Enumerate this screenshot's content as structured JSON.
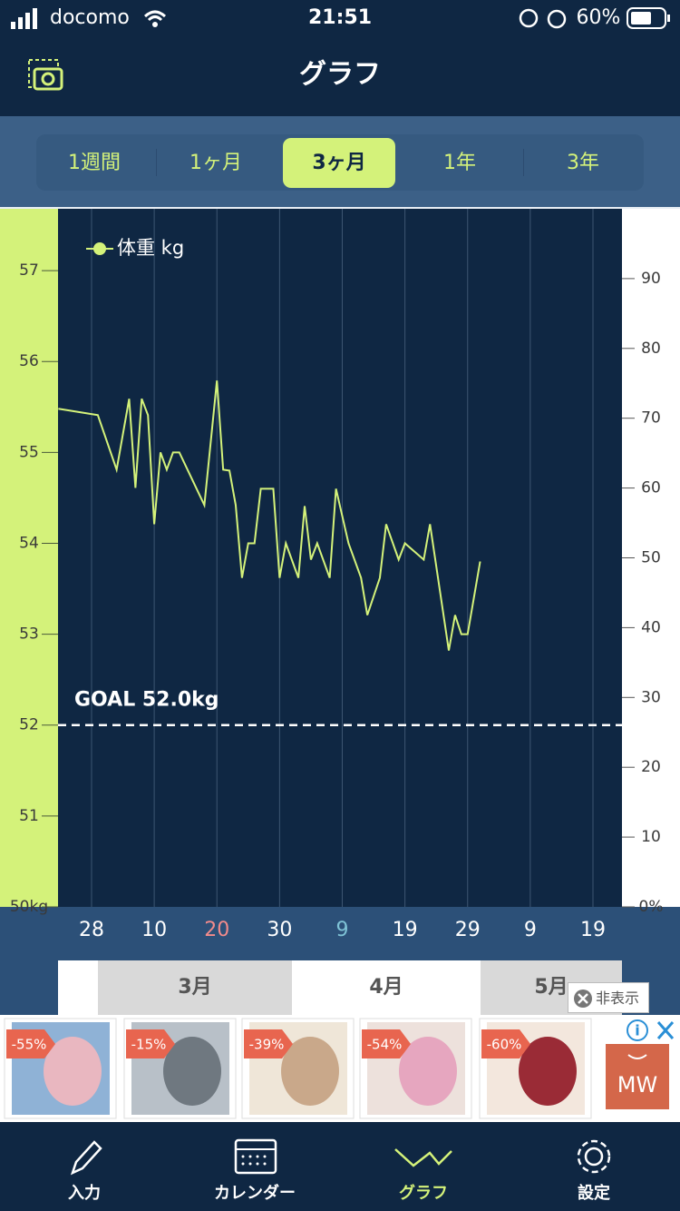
{
  "status_bar": {
    "carrier": "docomo",
    "time": "21:51",
    "battery": "60%"
  },
  "header": {
    "title": "グラフ"
  },
  "tabs": [
    {
      "label": "1週間"
    },
    {
      "label": "1ヶ月"
    },
    {
      "label": "3ヶ月",
      "active": true
    },
    {
      "label": "1年"
    },
    {
      "label": "3年"
    }
  ],
  "chart_data": {
    "type": "line",
    "x": [
      -5.3,
      1,
      4,
      6,
      7,
      8,
      9,
      10,
      11,
      12,
      13,
      14,
      18,
      20,
      21,
      22,
      23,
      24,
      25,
      26,
      27,
      29,
      30,
      31,
      33,
      34,
      35,
      36,
      38,
      39,
      41,
      43,
      44,
      46,
      47,
      49,
      50,
      53,
      54,
      57,
      58,
      59,
      60,
      62
    ],
    "series": [
      {
        "name": "体重 kg",
        "color": "#d4f27a",
        "values": [
          55.48,
          55.41,
          54.81,
          55.59,
          54.61,
          55.59,
          55.41,
          54.21,
          55.0,
          54.81,
          55.0,
          55.0,
          54.42,
          55.79,
          54.81,
          54.8,
          54.42,
          53.62,
          54.0,
          54.0,
          54.6,
          54.6,
          53.62,
          54.0,
          53.62,
          54.41,
          53.82,
          54.0,
          53.62,
          54.6,
          54.0,
          53.62,
          53.21,
          53.62,
          54.21,
          53.82,
          54.0,
          53.82,
          54.21,
          52.82,
          53.21,
          53.0,
          53.0,
          53.8
        ]
      }
    ],
    "xlim": [
      -5.35,
      84.63
    ],
    "xticks": [
      {
        "value": 0,
        "label": "28"
      },
      10,
      {
        "value": 20,
        "label": "20",
        "color": "#f28b8b"
      },
      30,
      {
        "value": 40,
        "label": "9",
        "color": "#7fc3d6"
      },
      {
        "value": 50,
        "label": "19"
      },
      {
        "value": 60,
        "label": "29"
      },
      {
        "value": 70,
        "label": "9"
      },
      {
        "value": 80,
        "label": "19"
      }
    ],
    "ylim": [
      50,
      57.68
    ],
    "yticks": [
      {
        "value": 50,
        "label": "50kg"
      },
      51,
      52,
      53,
      54,
      55,
      56,
      57
    ],
    "y2lim": [
      0,
      100
    ],
    "y2ticks": [
      {
        "value": 0,
        "label": "0%"
      },
      10,
      20,
      30,
      40,
      50,
      60,
      70,
      80,
      90
    ],
    "goal": {
      "value": 52,
      "label": "GOAL 52.0kg"
    },
    "grid": true,
    "legend": "top-left"
  },
  "months": [
    "3月",
    "4月",
    "5月"
  ],
  "ad": {
    "hide_button": "非表示",
    "discounts": [
      "-55%",
      "-15%",
      "-39%",
      "-54%",
      "-60%"
    ],
    "logo": "MW"
  },
  "nav": [
    {
      "label": "入力"
    },
    {
      "label": "カレンダー"
    },
    {
      "label": "グラフ",
      "active": true
    },
    {
      "label": "設定"
    }
  ]
}
